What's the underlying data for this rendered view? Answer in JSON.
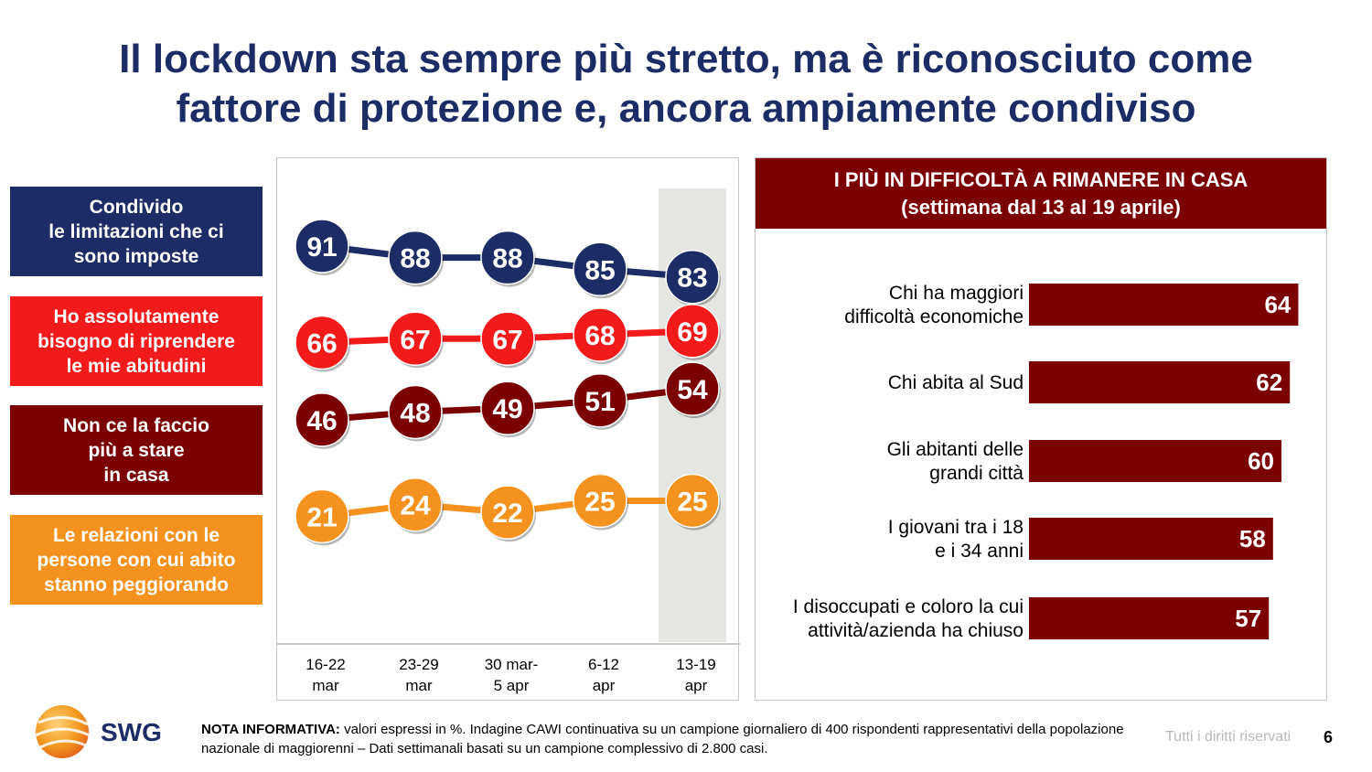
{
  "title_line1": "Il lockdown sta sempre più stretto, ma è riconosciuto come",
  "title_line2": "fattore di protezione e, ancora ampiamente condiviso",
  "chart_data": [
    {
      "type": "line",
      "categories": [
        "16-22\nmar",
        "23-29\nmar",
        "30 mar-\n5 apr",
        "6-12\napr",
        "13-19\napr"
      ],
      "ylim": [
        0,
        100
      ],
      "highlight_category_index": 4,
      "series": [
        {
          "name": "Condivido\nle limitazioni che ci\nsono imposte",
          "color": "#1b2c66",
          "values": [
            91,
            88,
            88,
            85,
            83
          ]
        },
        {
          "name": "Ho assolutamente\nbisogno di riprendere\nle mie abitudini",
          "color": "#f31a1a",
          "values": [
            66,
            67,
            67,
            68,
            69
          ]
        },
        {
          "name": "Non ce la faccio\npiù a stare\nin casa",
          "color": "#7b0000",
          "values": [
            46,
            48,
            49,
            51,
            54
          ]
        },
        {
          "name": "Le relazioni con le\npersone con cui abito\nstanno peggiorando",
          "color": "#f5921e",
          "values": [
            21,
            24,
            22,
            25,
            25
          ]
        }
      ]
    },
    {
      "type": "bar",
      "orientation": "horizontal",
      "title": "I PIÙ IN DIFFICOLTÀ A RIMANERE IN CASA",
      "subtitle": "(settimana dal 13 al 19 aprile)",
      "color": "#7b0000",
      "xlim": [
        0,
        70
      ],
      "categories": [
        "Chi ha maggiori\ndifficoltà economiche",
        "Chi abita al Sud",
        "Gli abitanti delle\ngrandi città",
        "I giovani tra i 18\ne i 34 anni",
        "I disoccupati e coloro la cui\nattività/azienda ha chiuso"
      ],
      "values": [
        64,
        62,
        60,
        58,
        57
      ]
    }
  ],
  "footer": {
    "logo_text": "SWG",
    "note_label": "NOTA INFORMATIVA:",
    "note_text": " valori espressi in %. Indagine CAWI continuativa su un campione giornaliero di 400 rispondenti rappresentativi della popolazione nazionale di maggiorenni – Dati settimanali basati su un campione complessivo di 2.800 casi.",
    "rights": "Tutti i diritti riservati",
    "page": "6"
  }
}
